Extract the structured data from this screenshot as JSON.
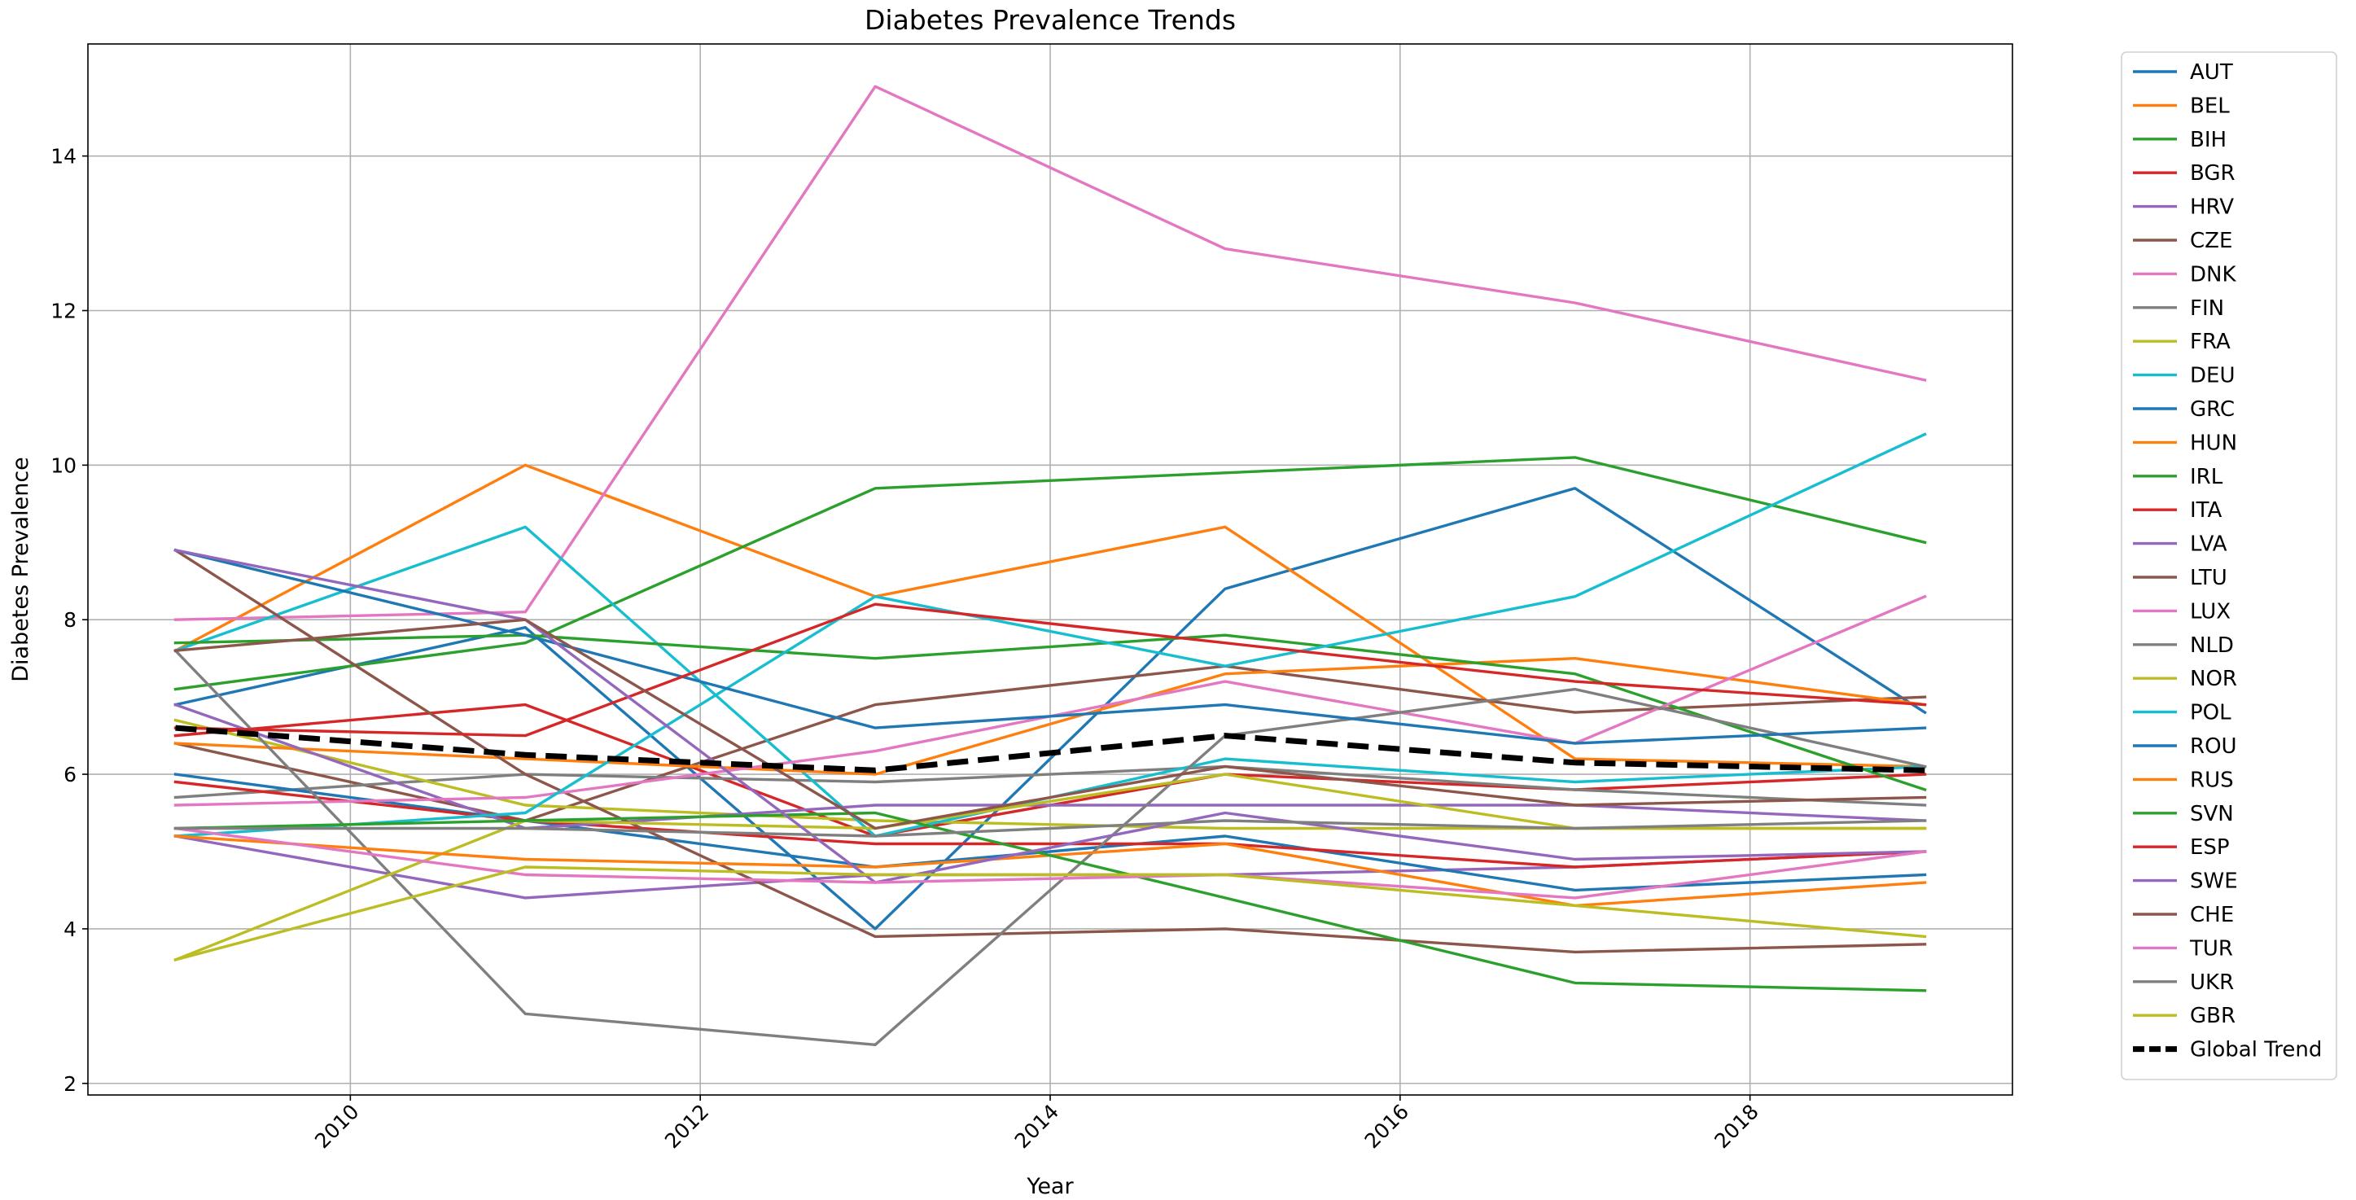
{
  "chart_data": {
    "type": "line",
    "title": "Diabetes Prevalence Trends",
    "xlabel": "Year",
    "ylabel": "Diabetes Prevalence",
    "xlim": [
      2008.5,
      2019.5
    ],
    "ylim": [
      1.85,
      15.45
    ],
    "x_ticks": [
      2010,
      2012,
      2014,
      2016,
      2018
    ],
    "x_tick_labels": [
      "2010",
      "2012",
      "2014",
      "2016",
      "2018"
    ],
    "y_ticks": [
      2,
      4,
      6,
      8,
      10,
      12,
      14
    ],
    "y_tick_labels": [
      "2",
      "4",
      "6",
      "8",
      "10",
      "12",
      "14"
    ],
    "grid": true,
    "legend_position": "outside-right",
    "x": [
      2009,
      2011,
      2013,
      2015,
      2017,
      2019
    ],
    "series": [
      {
        "name": "AUT",
        "color": "#1f77b4",
        "values": [
          6.9,
          7.9,
          4.0,
          8.4,
          9.7,
          6.8
        ]
      },
      {
        "name": "BEL",
        "color": "#ff7f0e",
        "values": [
          7.6,
          10.0,
          8.3,
          9.2,
          6.2,
          6.1
        ]
      },
      {
        "name": "BIH",
        "color": "#2ca02c",
        "values": [
          7.1,
          7.7,
          9.7,
          9.9,
          10.1,
          9.0
        ]
      },
      {
        "name": "BGR",
        "color": "#d62728",
        "values": [
          6.5,
          6.9,
          5.2,
          6.0,
          5.8,
          6.0
        ]
      },
      {
        "name": "HRV",
        "color": "#9467bd",
        "values": [
          5.2,
          4.4,
          4.7,
          4.7,
          4.8,
          5.0
        ]
      },
      {
        "name": "CZE",
        "color": "#8c564b",
        "values": [
          6.4,
          5.4,
          6.9,
          7.4,
          6.8,
          7.0
        ]
      },
      {
        "name": "DNK",
        "color": "#e377c2",
        "values": [
          8.0,
          8.1,
          14.9,
          12.8,
          12.1,
          11.1
        ]
      },
      {
        "name": "FIN",
        "color": "#7f7f7f",
        "values": [
          5.7,
          6.0,
          5.9,
          6.1,
          5.8,
          5.6
        ]
      },
      {
        "name": "FRA",
        "color": "#bcbd22",
        "values": [
          6.7,
          5.6,
          5.4,
          5.3,
          5.3,
          5.3
        ]
      },
      {
        "name": "DEU",
        "color": "#17becf",
        "values": [
          7.6,
          9.2,
          5.2,
          6.2,
          5.9,
          6.1
        ]
      },
      {
        "name": "GRC",
        "color": "#1f77b4",
        "values": [
          6.0,
          5.4,
          4.8,
          5.2,
          4.5,
          4.7
        ]
      },
      {
        "name": "HUN",
        "color": "#ff7f0e",
        "values": [
          6.4,
          6.2,
          6.0,
          7.3,
          7.5,
          6.9
        ]
      },
      {
        "name": "IRL",
        "color": "#2ca02c",
        "values": [
          7.7,
          7.8,
          7.5,
          7.8,
          7.3,
          5.8
        ]
      },
      {
        "name": "ITA",
        "color": "#d62728",
        "values": [
          5.9,
          5.4,
          5.1,
          5.1,
          4.8,
          5.0
        ]
      },
      {
        "name": "LVA",
        "color": "#9467bd",
        "values": [
          6.9,
          5.3,
          5.6,
          5.6,
          5.6,
          5.4
        ]
      },
      {
        "name": "LTU",
        "color": "#8c564b",
        "values": [
          8.9,
          6.0,
          3.9,
          4.0,
          3.7,
          3.8
        ]
      },
      {
        "name": "LUX",
        "color": "#e377c2",
        "values": [
          5.6,
          5.7,
          6.3,
          7.2,
          6.4,
          8.3
        ]
      },
      {
        "name": "NLD",
        "color": "#7f7f7f",
        "values": [
          7.6,
          2.9,
          2.5,
          6.5,
          7.1,
          6.1
        ]
      },
      {
        "name": "NOR",
        "color": "#bcbd22",
        "values": [
          3.6,
          5.4,
          5.3,
          6.0,
          5.3,
          5.3
        ]
      },
      {
        "name": "POL",
        "color": "#17becf",
        "values": [
          5.2,
          5.5,
          8.3,
          7.4,
          8.3,
          10.4
        ]
      },
      {
        "name": "ROU",
        "color": "#1f77b4",
        "values": [
          8.9,
          7.8,
          6.6,
          6.9,
          6.4,
          6.6
        ]
      },
      {
        "name": "RUS",
        "color": "#ff7f0e",
        "values": [
          5.2,
          4.9,
          4.8,
          5.1,
          4.3,
          4.6
        ]
      },
      {
        "name": "SVN",
        "color": "#2ca02c",
        "values": [
          5.3,
          5.4,
          5.5,
          4.4,
          3.3,
          3.2
        ]
      },
      {
        "name": "ESP",
        "color": "#d62728",
        "values": [
          6.6,
          6.5,
          8.2,
          7.7,
          7.2,
          6.9
        ]
      },
      {
        "name": "SWE",
        "color": "#9467bd",
        "values": [
          8.9,
          8.0,
          4.6,
          5.5,
          4.9,
          5.0
        ]
      },
      {
        "name": "CHE",
        "color": "#8c564b",
        "values": [
          7.6,
          8.0,
          5.3,
          6.1,
          5.6,
          5.7
        ]
      },
      {
        "name": "TUR",
        "color": "#e377c2",
        "values": [
          5.3,
          4.7,
          4.6,
          4.7,
          4.4,
          5.0
        ]
      },
      {
        "name": "UKR",
        "color": "#7f7f7f",
        "values": [
          5.3,
          5.3,
          5.2,
          5.4,
          5.3,
          5.4
        ]
      },
      {
        "name": "GBR",
        "color": "#bcbd22",
        "values": [
          3.6,
          4.8,
          4.7,
          4.7,
          4.3,
          3.9
        ]
      },
      {
        "name": "Global Trend",
        "color": "#000000",
        "dashed": true,
        "values": [
          6.6,
          6.25,
          6.05,
          6.5,
          6.15,
          6.05
        ]
      }
    ]
  }
}
